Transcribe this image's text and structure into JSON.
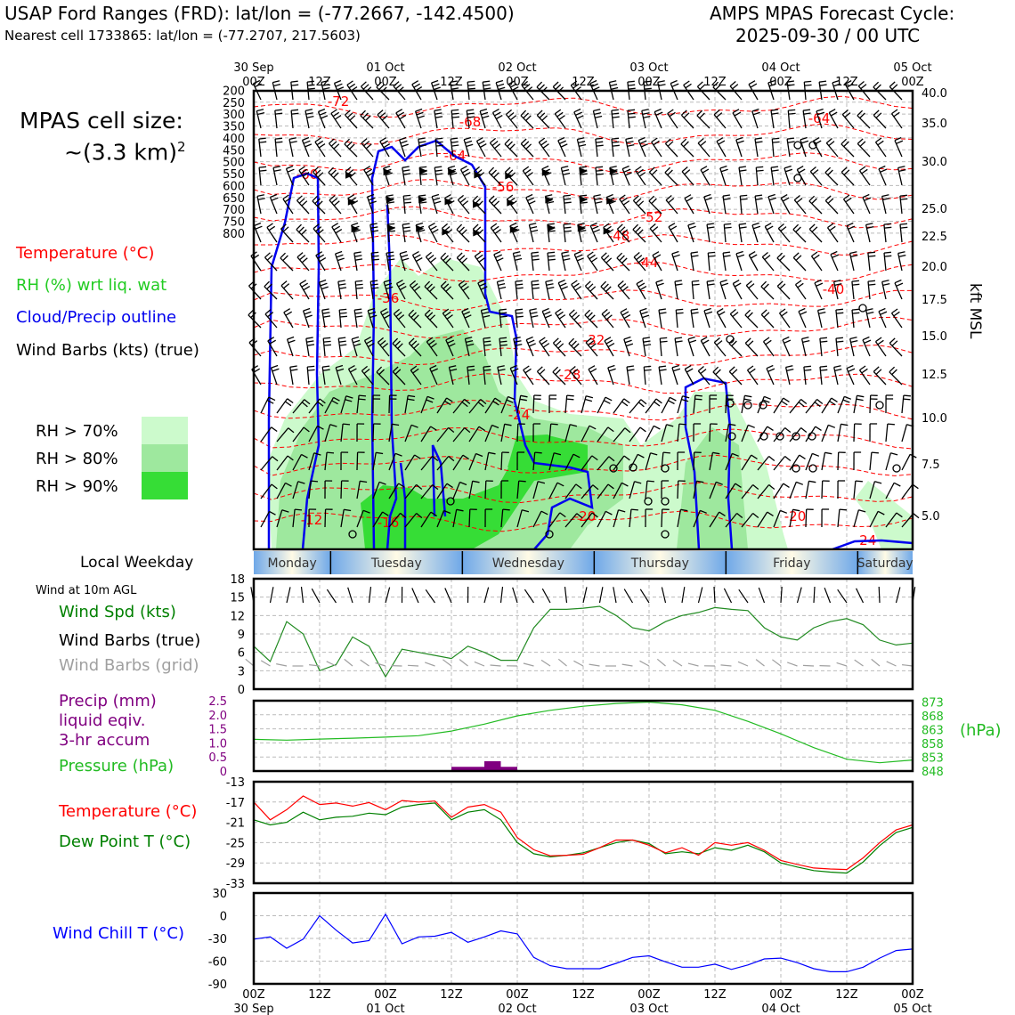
{
  "header": {
    "station_line": "USAP Ford Ranges (FRD): lat/lon = (-77.2667, -142.4500)",
    "cell_line": "Nearest cell 1733865: lat/lon = (-77.2707, 217.5603)",
    "cycle_title": "AMPS MPAS Forecast Cycle:",
    "cycle_time": "2025-09-30 / 00 UTC"
  },
  "side": {
    "cell_size_line1": "MPAS cell size:",
    "cell_size_line2": "~(3.3 km)",
    "cell_size_sup": "2",
    "legend_temp": "Temperature (°C)",
    "legend_rh": "RH (%) wrt liq. wat",
    "legend_cloud": "Cloud/Precip outline",
    "legend_wind": "Wind Barbs (kts) (true)",
    "rh70": "RH > 70%",
    "rh80": "RH > 80%",
    "rh90": "RH > 90%",
    "local_weekday": "Local Weekday",
    "wind10m": "Wind at 10m AGL",
    "wind_spd": "Wind Spd (kts)",
    "wind_true": "Wind Barbs (true)",
    "wind_grid": "Wind Barbs (grid)",
    "precip1": "Precip (mm)",
    "precip2": "liquid eqiv.",
    "precip3": "3-hr accum",
    "pressure": "Pressure (hPa)",
    "temp": "Temperature (°C)",
    "dewpt": "Dew Point T (°C)",
    "windchill": "Wind Chill T (°C)",
    "hpa_unit": "(hPa)",
    "kft": "kft MSL"
  },
  "colors": {
    "temp": "#ff0000",
    "dew": "#008000",
    "pressure": "#22bb22",
    "precip": "#800080",
    "windchill": "#0000ff",
    "cloud": "#0000ee",
    "rh70": "#ccfacc",
    "rh80": "#9ee89e",
    "rh90": "#36dd36",
    "windspd": "#228b22",
    "grid_barb": "#a0a0a0"
  },
  "time_axis": {
    "top_labels": [
      {
        "l1": "30 Sep",
        "l2": "00Z"
      },
      {
        "l1": "",
        "l2": "12Z"
      },
      {
        "l1": "01 Oct",
        "l2": "00Z"
      },
      {
        "l1": "",
        "l2": "12Z"
      },
      {
        "l1": "02 Oct",
        "l2": "00Z"
      },
      {
        "l1": "",
        "l2": "12Z"
      },
      {
        "l1": "03 Oct",
        "l2": "00Z"
      },
      {
        "l1": "",
        "l2": "12Z"
      },
      {
        "l1": "04 Oct",
        "l2": "00Z"
      },
      {
        "l1": "",
        "l2": "12Z"
      },
      {
        "l1": "05 Oct",
        "l2": "00Z"
      }
    ],
    "bottom_labels": [
      {
        "l1": "00Z",
        "l2": "30 Sep"
      },
      {
        "l1": "12Z",
        "l2": ""
      },
      {
        "l1": "00Z",
        "l2": "01 Oct"
      },
      {
        "l1": "12Z",
        "l2": ""
      },
      {
        "l1": "00Z",
        "l2": "02 Oct"
      },
      {
        "l1": "12Z",
        "l2": ""
      },
      {
        "l1": "00Z",
        "l2": "03 Oct"
      },
      {
        "l1": "12Z",
        "l2": ""
      },
      {
        "l1": "00Z",
        "l2": "04 Oct"
      },
      {
        "l1": "12Z",
        "l2": ""
      },
      {
        "l1": "00Z",
        "l2": "05 Oct"
      }
    ]
  },
  "weekdays": [
    "Monday",
    "Tuesday",
    "Wednesday",
    "Thursday",
    "Friday",
    "Saturday"
  ],
  "chart_data": [
    {
      "type": "heatmap",
      "name": "cross-section",
      "x_range_hours": [
        0,
        120
      ],
      "y_pressure_levels": [
        200,
        250,
        300,
        350,
        400,
        450,
        500,
        550,
        600,
        650,
        700,
        750,
        800
      ],
      "y_kft_levels": [
        "40.0",
        "35.0",
        "30.0",
        "25.0",
        "22.5",
        "20.0",
        "17.5",
        "15.0",
        "12.5",
        "10.0",
        "7.5",
        "5.0"
      ],
      "temperature_contour_labels": [
        "-72",
        "-68",
        "-64",
        "-64",
        "-60",
        "-56",
        "-52",
        "-48",
        "-44",
        "-40",
        "-36",
        "-32",
        "-28",
        "-24",
        "-20",
        "-20",
        "-24",
        "-16",
        "-12"
      ]
    },
    {
      "type": "line",
      "name": "wind-speed",
      "x_hours": [
        0,
        3,
        6,
        9,
        12,
        15,
        18,
        21,
        24,
        27,
        30,
        33,
        36,
        39,
        42,
        45,
        48,
        51,
        54,
        57,
        60,
        63,
        66,
        69,
        72,
        75,
        78,
        81,
        84,
        87,
        90,
        93,
        96,
        99,
        102,
        105,
        108,
        111,
        114,
        117,
        120
      ],
      "values": [
        7,
        4.5,
        11,
        9,
        3,
        4,
        8.5,
        7,
        2,
        6.5,
        6,
        5.5,
        5,
        7,
        6,
        4.7,
        4.7,
        10,
        13,
        13,
        13.2,
        13.5,
        12,
        10,
        9.5,
        11,
        12,
        12.5,
        13.3,
        13,
        12.8,
        10,
        8.5,
        8,
        10,
        11,
        11.5,
        10.5,
        8,
        7.2,
        7.5
      ],
      "ylim": [
        0,
        18
      ],
      "yticks": [
        0,
        3,
        6,
        9,
        12,
        15,
        18
      ]
    },
    {
      "type": "bar",
      "name": "precip",
      "categories_hours": [
        [
          36,
          39
        ],
        [
          39,
          42
        ],
        [
          42,
          45
        ],
        [
          45,
          48
        ]
      ],
      "values": [
        0.15,
        0.15,
        0.35,
        0.15
      ],
      "ylim": [
        0,
        2.5
      ],
      "yticks": [
        "0",
        "0.5",
        "1.0",
        "1.5",
        "2.0",
        "2.5"
      ]
    },
    {
      "type": "line",
      "name": "pressure",
      "x_hours": [
        0,
        6,
        12,
        18,
        24,
        30,
        36,
        42,
        48,
        54,
        60,
        66,
        72,
        78,
        84,
        90,
        96,
        102,
        108,
        114,
        120
      ],
      "values": [
        859.5,
        859.2,
        859.6,
        859.9,
        860.3,
        860.8,
        862.5,
        865,
        868,
        870,
        871.5,
        872.5,
        873,
        872,
        870,
        866,
        861.5,
        856.5,
        852.3,
        851,
        852
      ],
      "ylim": [
        848,
        873.5
      ],
      "yticks": [
        "873",
        "868",
        "863",
        "858",
        "853",
        "848"
      ]
    },
    {
      "type": "line",
      "name": "temperature-dewpoint",
      "x_hours": [
        0,
        3,
        6,
        9,
        12,
        15,
        18,
        21,
        24,
        27,
        30,
        33,
        36,
        39,
        42,
        45,
        48,
        51,
        54,
        57,
        60,
        63,
        66,
        69,
        72,
        75,
        78,
        81,
        84,
        87,
        90,
        93,
        96,
        99,
        102,
        105,
        108,
        111,
        114,
        117,
        120
      ],
      "series": [
        {
          "name": "Temperature (°C)",
          "values": [
            -17,
            -20.5,
            -18.5,
            -15.8,
            -17.5,
            -17.2,
            -17.8,
            -17.1,
            -18.5,
            -16.7,
            -17,
            -16.8,
            -20,
            -18,
            -17.5,
            -19,
            -24,
            -26.4,
            -27.6,
            -27.5,
            -27.3,
            -26,
            -24.5,
            -24.5,
            -25.5,
            -27,
            -26,
            -27.5,
            -25,
            -25.5,
            -25,
            -26.5,
            -28.5,
            -29.3,
            -30,
            -30.2,
            -30.3,
            -28,
            -25,
            -22.5,
            -21.5
          ]
        },
        {
          "name": "Dew Point T (°C)",
          "values": [
            -20.5,
            -21.5,
            -21,
            -19,
            -20.5,
            -20,
            -19.8,
            -19.2,
            -19.5,
            -18,
            -17.5,
            -17.2,
            -20.5,
            -19,
            -18.5,
            -20.5,
            -25,
            -27.2,
            -27.8,
            -27.5,
            -27,
            -26,
            -25,
            -24.5,
            -25.2,
            -27.2,
            -26.8,
            -27.2,
            -26,
            -26.5,
            -25.5,
            -26.8,
            -29,
            -29.8,
            -30.5,
            -30.8,
            -31,
            -28.8,
            -25.6,
            -23,
            -22
          ]
        }
      ],
      "ylim": [
        -33,
        -13
      ],
      "yticks": [
        "-13",
        "-17",
        "-21",
        "-25",
        "-29",
        "-33"
      ]
    },
    {
      "type": "line",
      "name": "wind-chill",
      "x_hours": [
        0,
        3,
        6,
        9,
        12,
        15,
        18,
        21,
        24,
        27,
        30,
        33,
        36,
        39,
        42,
        45,
        48,
        51,
        54,
        57,
        60,
        63,
        66,
        69,
        72,
        75,
        78,
        81,
        84,
        87,
        90,
        93,
        96,
        99,
        102,
        105,
        108,
        111,
        114,
        117,
        120
      ],
      "values": [
        -31,
        -28,
        -43,
        -31,
        0,
        -19,
        -36,
        -33,
        2,
        -37,
        -28,
        -27,
        -22,
        -35,
        -28,
        -20,
        -24,
        -55,
        -66,
        -70,
        -70,
        -70,
        -63,
        -55,
        -53,
        -61,
        -68,
        -68,
        -64,
        -71,
        -65,
        -57,
        -56,
        -62,
        -70,
        -74,
        -74,
        -68,
        -56,
        -46,
        -44
      ],
      "ylim": [
        -90,
        30
      ],
      "yticks": [
        "30",
        "0",
        "-30",
        "-60",
        "-90"
      ]
    }
  ]
}
